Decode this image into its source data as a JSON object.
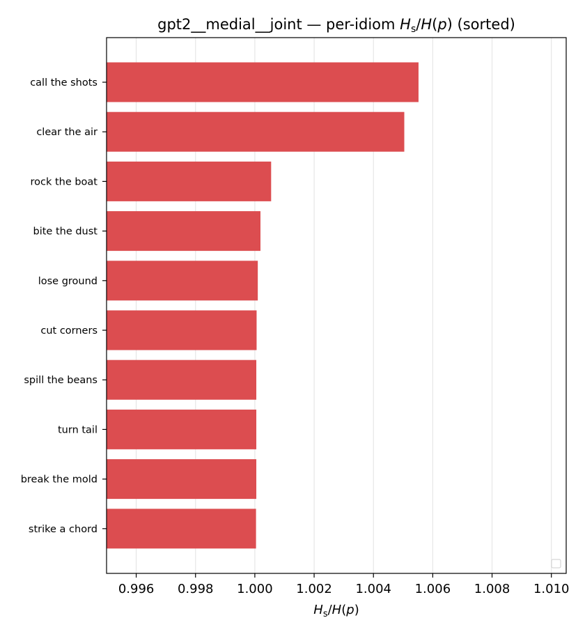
{
  "chart_data": {
    "type": "bar",
    "orientation": "horizontal",
    "title_prefix": "gpt2__medial__joint — per-idiom ",
    "title_suffix": " (sorted)",
    "xlabel_math": "H_s/H(p)",
    "categories": [
      "call the shots",
      "clear the air",
      "rock the boat",
      "bite the dust",
      "lose ground",
      "cut corners",
      "spill the beans",
      "turn tail",
      "break the mold",
      "strike a chord"
    ],
    "values": [
      1.00552,
      1.00504,
      1.00055,
      1.00019,
      1.0001,
      1.00006,
      1.00005,
      1.00005,
      1.00005,
      1.00004
    ],
    "xlim": [
      0.995,
      1.0105
    ],
    "xticks": [
      "0.996",
      "0.998",
      "1.000",
      "1.002",
      "1.004",
      "1.006",
      "1.008",
      "1.010"
    ],
    "grid": "x",
    "bar_color": "#dc4d50",
    "legend": "lower-right (empty)"
  }
}
